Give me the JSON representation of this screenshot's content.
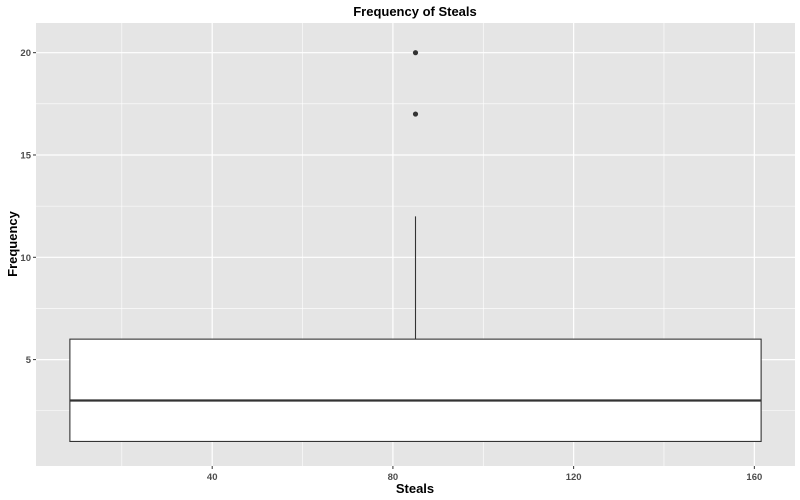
{
  "chart_data": {
    "type": "boxplot",
    "title": "Frequency of Steals",
    "xlabel": "Steals",
    "ylabel": "Frequency",
    "xlim": [
      1,
      169
    ],
    "ylim": [
      -0.2,
      21.45
    ],
    "x_ticks": [
      40,
      80,
      120,
      160
    ],
    "y_ticks": [
      5,
      10,
      15,
      20
    ],
    "grid": true,
    "panel_background": "#e5e5e5",
    "grid_color": "#ffffff",
    "box": {
      "x_min": 8.5,
      "x_max": 161.5,
      "x_center": 85,
      "q1": 1,
      "median": 3,
      "q3": 6,
      "whisker_low": 1,
      "whisker_high": 12,
      "outliers": [
        17,
        20
      ],
      "fill": "#ffffff",
      "stroke": "#333333"
    }
  }
}
